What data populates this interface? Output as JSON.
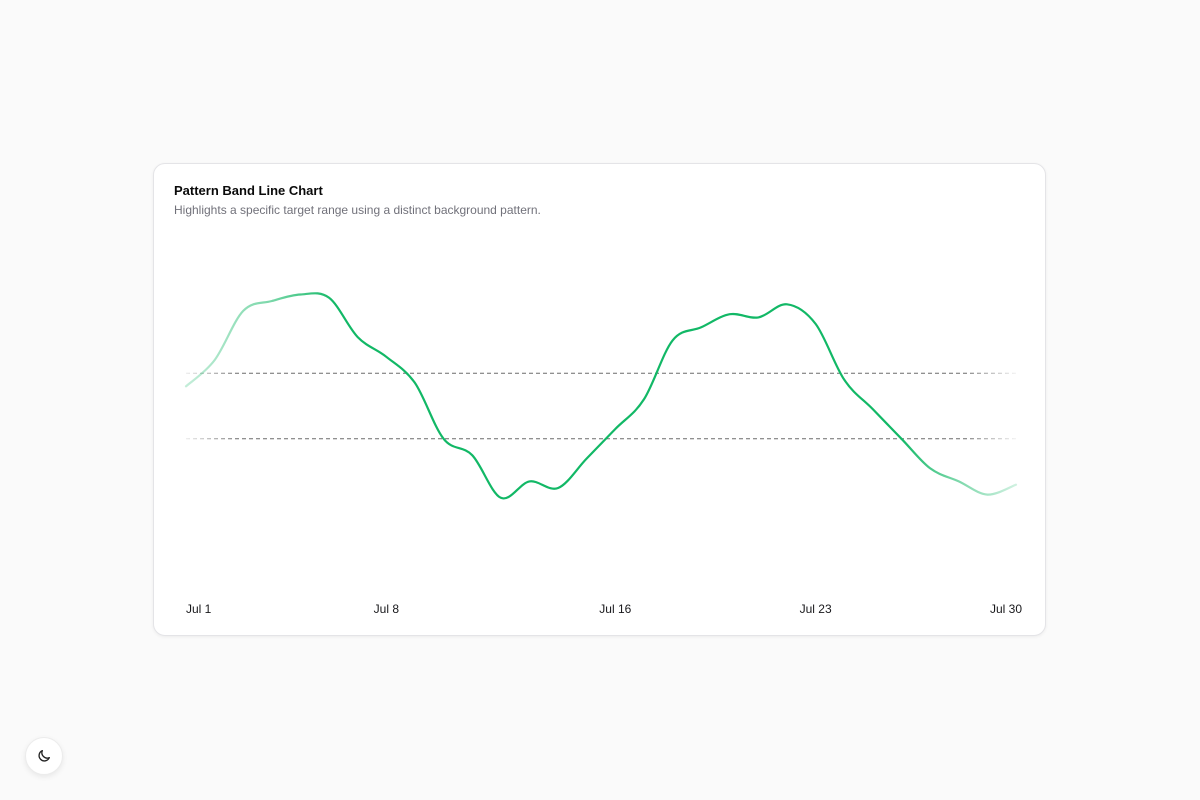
{
  "card": {
    "title": "Pattern Band Line Chart",
    "subtitle": "Highlights a specific target range using a distinct background pattern."
  },
  "theme_toggle": {
    "icon": "moon-icon"
  },
  "colors": {
    "line": "#12b866",
    "band_line": "#6b6b6b",
    "background": "#fafafa",
    "card": "#ffffff"
  },
  "chart_data": {
    "type": "line",
    "title": "Pattern Band Line Chart",
    "subtitle": "Highlights a specific target range using a distinct background pattern.",
    "xlabel": "",
    "ylabel": "",
    "x_ticks": [
      "Jul 1",
      "Jul 8",
      "Jul 16",
      "Jul 23",
      "Jul 30"
    ],
    "x_tick_days": [
      1,
      8,
      16,
      23,
      30
    ],
    "xlim": [
      1,
      30
    ],
    "ylim": [
      0,
      100
    ],
    "grid": false,
    "band": {
      "low": 40,
      "high": 60
    },
    "series": [
      {
        "x": [
          1,
          2,
          3,
          4,
          5,
          6,
          7,
          8,
          9,
          10,
          11,
          12,
          13,
          14,
          15,
          16,
          17,
          18,
          19,
          20,
          21,
          22,
          23,
          24,
          25,
          26,
          27,
          28,
          29,
          30
        ],
        "values": [
          56,
          64,
          79,
          82,
          84,
          83,
          71,
          65,
          57,
          40,
          35,
          22,
          27,
          25,
          34,
          43,
          52,
          70,
          74,
          78,
          77,
          81,
          75,
          58,
          49,
          40,
          31,
          27,
          23,
          26
        ]
      }
    ]
  }
}
